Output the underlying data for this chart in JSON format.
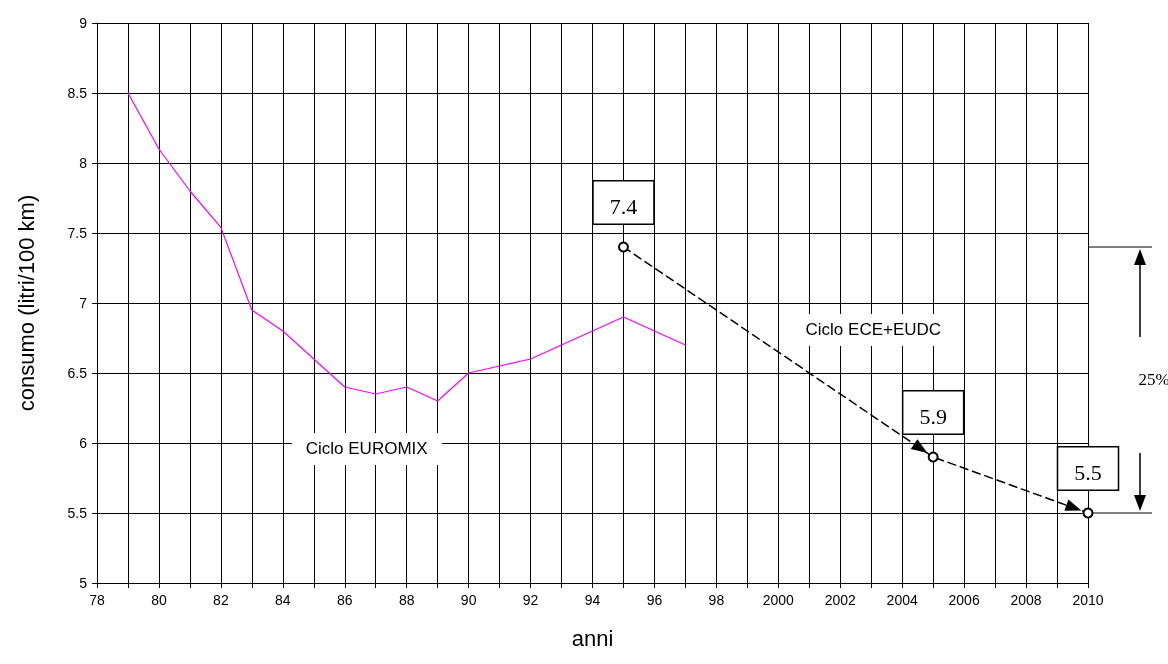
{
  "chart_data": {
    "type": "line",
    "xlabel": "anni",
    "ylabel": "consumo (litri/100 km)",
    "x": [
      1979,
      1980,
      1981,
      1982,
      1983,
      1984,
      1985,
      1986,
      1987,
      1988,
      1989,
      1990,
      1991,
      1992,
      1993,
      1994,
      1995,
      1996,
      1997
    ],
    "series": [
      {
        "name": "Ciclo EUROMIX",
        "color": "#ff00ff",
        "marker": "none",
        "line_style": "solid",
        "values": [
          8.5,
          8.1,
          7.8,
          7.54,
          6.95,
          6.8,
          6.6,
          6.4,
          6.35,
          6.4,
          6.3,
          6.5,
          6.55,
          6.6,
          6.7,
          6.8,
          6.9,
          6.8,
          6.7
        ]
      },
      {
        "name": "Ciclo ECE+EUDC",
        "color": "#000000",
        "marker": "circle",
        "line_style": "dashed",
        "x": [
          1995,
          2005,
          2010
        ],
        "values": [
          7.4,
          5.9,
          5.5
        ],
        "value_labels": [
          "7.4",
          "5.9",
          "5.5"
        ]
      }
    ],
    "annotations": [
      "25%"
    ],
    "xlim": [
      1978,
      2010
    ],
    "xticks": [
      {
        "value": 1978,
        "label": "78"
      },
      {
        "value": 1979,
        "label": null
      },
      {
        "value": 1980,
        "label": "80"
      },
      {
        "value": 1981,
        "label": null
      },
      {
        "value": 1982,
        "label": "82"
      },
      {
        "value": 1983,
        "label": null
      },
      {
        "value": 1984,
        "label": "84"
      },
      {
        "value": 1985,
        "label": null
      },
      {
        "value": 1986,
        "label": "86"
      },
      {
        "value": 1987,
        "label": null
      },
      {
        "value": 1988,
        "label": "88"
      },
      {
        "value": 1989,
        "label": null
      },
      {
        "value": 1990,
        "label": "90"
      },
      {
        "value": 1991,
        "label": null
      },
      {
        "value": 1992,
        "label": "92"
      },
      {
        "value": 1993,
        "label": null
      },
      {
        "value": 1994,
        "label": "94"
      },
      {
        "value": 1995,
        "label": null
      },
      {
        "value": 1996,
        "label": "96"
      },
      {
        "value": 1997,
        "label": null
      },
      {
        "value": 1998,
        "label": "98"
      },
      {
        "value": 1999,
        "label": null
      },
      2000,
      {
        "value": 2001,
        "label": null
      },
      2002,
      {
        "value": 2003,
        "label": null
      },
      2004,
      {
        "value": 2005,
        "label": null
      },
      2006,
      {
        "value": 2007,
        "label": null
      },
      2008,
      {
        "value": 2009,
        "label": null
      },
      2010
    ],
    "ylim": [
      5,
      9
    ],
    "yticks": [
      5,
      5.5,
      6,
      6.5,
      7,
      7.5,
      8,
      8.5,
      9
    ],
    "grid": true,
    "legend": false
  }
}
